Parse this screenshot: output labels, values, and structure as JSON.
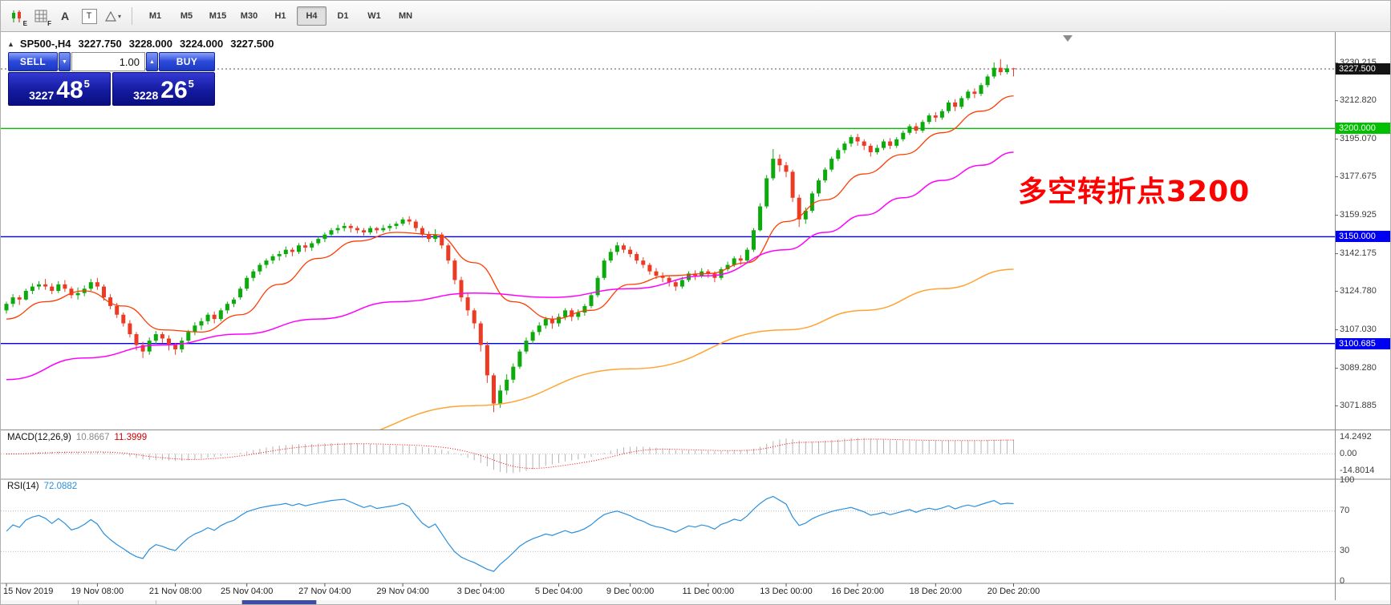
{
  "toolbar": {
    "text_tool": "A",
    "title_tool": "T",
    "icon_sub_e": "E",
    "icon_sub_f": "F",
    "dropdown_arrow": "▾",
    "timeframes": [
      "M1",
      "M5",
      "M15",
      "M30",
      "H1",
      "H4",
      "D1",
      "W1",
      "MN"
    ],
    "active_timeframe": "H4"
  },
  "chart_header": {
    "symbol_period": "SP500-,H4",
    "open": "3227.750",
    "high": "3228.000",
    "low": "3224.000",
    "close": "3227.500"
  },
  "trade_panel": {
    "toggle_icon": "▲",
    "sell_label": "SELL",
    "buy_label": "BUY",
    "volume": "1.00",
    "stepper_down": "▼",
    "stepper_up": "▲",
    "bid_big": "3227",
    "bid_pips": "48",
    "bid_sup": "5",
    "ask_big": "3228",
    "ask_pips": "26",
    "ask_sup": "5"
  },
  "annotation": {
    "text": "多空转折点3200",
    "color": "#ff0000"
  },
  "price_axis": {
    "ticks": [
      {
        "text": "3230.215",
        "value": 3230.215
      },
      {
        "text": "3212.820",
        "value": 3212.82
      },
      {
        "text": "3195.070",
        "value": 3195.07
      },
      {
        "text": "3177.675",
        "value": 3177.675
      },
      {
        "text": "3159.925",
        "value": 3159.925
      },
      {
        "text": "3142.175",
        "value": 3142.175
      },
      {
        "text": "3124.780",
        "value": 3124.78
      },
      {
        "text": "3107.030",
        "value": 3107.03
      },
      {
        "text": "3089.280",
        "value": 3089.28
      },
      {
        "text": "3071.885",
        "value": 3071.885
      }
    ],
    "special": [
      {
        "text": "3227.500",
        "value": 3227.5,
        "bg": "#141414",
        "type": "current-price"
      },
      {
        "text": "3200.000",
        "value": 3200.0,
        "bg": "#00c000",
        "type": "level"
      },
      {
        "text": "3150.000",
        "value": 3150.0,
        "bg": "#0000f0",
        "type": "level"
      },
      {
        "text": "3100.685",
        "value": 3100.685,
        "bg": "#0000f0",
        "type": "level"
      }
    ]
  },
  "macd_panel": {
    "name": "MACD(12,26,9)",
    "value_main": "10.8667",
    "value_signal": "11.3999",
    "params": {
      "fast": 12,
      "slow": 26,
      "signal": 9
    },
    "axis": [
      {
        "text": "14.2492",
        "value": 14.2492
      },
      {
        "text": "0.00",
        "value": 0
      },
      {
        "text": "-14.8014",
        "value": -14.8014
      }
    ]
  },
  "rsi_panel": {
    "name": "RSI(14)",
    "value": "72.0882",
    "period": 14,
    "levels": [
      70,
      30
    ],
    "color": "#2a8fdd",
    "axis": [
      {
        "text": "100",
        "value": 100
      },
      {
        "text": "70",
        "value": 70
      },
      {
        "text": "30",
        "value": 30
      },
      {
        "text": "0",
        "value": 0
      }
    ]
  },
  "time_axis": {
    "labels": [
      {
        "bar": 0,
        "text": "15 Nov 2019"
      },
      {
        "bar": 14,
        "text": "19 Nov 08:00"
      },
      {
        "bar": 26,
        "text": "21 Nov 08:00"
      },
      {
        "bar": 37,
        "text": "25 Nov 04:00"
      },
      {
        "bar": 49,
        "text": "27 Nov 04:00"
      },
      {
        "bar": 61,
        "text": "29 Nov 04:00"
      },
      {
        "bar": 73,
        "text": "3 Dec 04:00"
      },
      {
        "bar": 85,
        "text": "5 Dec 04:00"
      },
      {
        "bar": 96,
        "text": "9 Dec 00:00"
      },
      {
        "bar": 108,
        "text": "11 Dec 00:00"
      },
      {
        "bar": 120,
        "text": "13 Dec 00:00"
      },
      {
        "bar": 131,
        "text": "16 Dec 20:00"
      },
      {
        "bar": 143,
        "text": "18 Dec 20:00"
      },
      {
        "bar": 155,
        "text": "20 Dec 20:00"
      }
    ]
  },
  "chart_data": {
    "type": "candlestick",
    "symbol": "SP500-",
    "timeframe": "H4",
    "y_range": [
      3060.8,
      3243.4
    ],
    "up_color": "#0caa0c",
    "down_color": "#ec3b24",
    "hlines": [
      {
        "value": 3200.0,
        "color": "#00c000",
        "width": 1.4
      },
      {
        "value": 3150.0,
        "color": "#0000f0",
        "width": 1.4
      },
      {
        "value": 3100.685,
        "color": "#0000f0",
        "width": 1.4
      },
      {
        "value": 3227.5,
        "color": "#555555",
        "width": 1,
        "style": "dotted"
      }
    ],
    "moving_averages": [
      {
        "name": "fast-ma",
        "color": "#ff3b00",
        "width": 1.3,
        "points": [
          [
            0,
            3112
          ],
          [
            6,
            3120
          ],
          [
            12,
            3125
          ],
          [
            18,
            3118
          ],
          [
            24,
            3107
          ],
          [
            30,
            3106
          ],
          [
            36,
            3114
          ],
          [
            42,
            3128
          ],
          [
            48,
            3140
          ],
          [
            54,
            3148
          ],
          [
            60,
            3152
          ],
          [
            66,
            3151
          ],
          [
            72,
            3138
          ],
          [
            78,
            3120
          ],
          [
            84,
            3112
          ],
          [
            90,
            3116
          ],
          [
            96,
            3128
          ],
          [
            102,
            3132
          ],
          [
            108,
            3133
          ],
          [
            114,
            3138
          ],
          [
            120,
            3157
          ],
          [
            126,
            3167
          ],
          [
            132,
            3179
          ],
          [
            138,
            3188
          ],
          [
            144,
            3198
          ],
          [
            150,
            3208
          ],
          [
            155,
            3215
          ]
        ]
      },
      {
        "name": "medium-ma",
        "color": "#ff00ff",
        "width": 1.5,
        "points": [
          [
            0,
            3084
          ],
          [
            12,
            3094
          ],
          [
            24,
            3100
          ],
          [
            36,
            3105
          ],
          [
            48,
            3112
          ],
          [
            60,
            3120
          ],
          [
            72,
            3124
          ],
          [
            84,
            3122
          ],
          [
            96,
            3126
          ],
          [
            108,
            3132
          ],
          [
            120,
            3144
          ],
          [
            126,
            3152
          ],
          [
            132,
            3160
          ],
          [
            138,
            3168
          ],
          [
            144,
            3176
          ],
          [
            150,
            3183
          ],
          [
            155,
            3189
          ]
        ]
      },
      {
        "name": "slow-ma",
        "color": "#ffa333",
        "width": 1.5,
        "points": [
          [
            0,
            3020
          ],
          [
            24,
            3038
          ],
          [
            48,
            3056
          ],
          [
            72,
            3072
          ],
          [
            96,
            3089
          ],
          [
            120,
            3107
          ],
          [
            132,
            3116
          ],
          [
            144,
            3126
          ],
          [
            155,
            3135
          ]
        ]
      }
    ],
    "bars": [
      [
        3116,
        3120,
        3114.5,
        3119
      ],
      [
        3119,
        3123.5,
        3117.5,
        3122
      ],
      [
        3122,
        3123,
        3118.5,
        3121
      ],
      [
        3121,
        3126,
        3120.5,
        3125
      ],
      [
        3125,
        3128.5,
        3123.5,
        3127
      ],
      [
        3127,
        3129.5,
        3125.5,
        3128
      ],
      [
        3128,
        3130.5,
        3125.5,
        3127
      ],
      [
        3127,
        3128.5,
        3123.5,
        3125
      ],
      [
        3125,
        3129.5,
        3124,
        3128
      ],
      [
        3128,
        3130,
        3124.5,
        3126
      ],
      [
        3126,
        3127,
        3121.5,
        3123
      ],
      [
        3123,
        3126.5,
        3121,
        3124
      ],
      [
        3124,
        3127.5,
        3122.5,
        3126
      ],
      [
        3126,
        3130.5,
        3125,
        3129
      ],
      [
        3129,
        3131,
        3125.5,
        3127
      ],
      [
        3127,
        3128,
        3120.5,
        3122
      ],
      [
        3122,
        3123.5,
        3116.5,
        3118
      ],
      [
        3118,
        3119.5,
        3112.5,
        3114
      ],
      [
        3114,
        3115,
        3108.5,
        3110
      ],
      [
        3110,
        3111.5,
        3103.5,
        3105
      ],
      [
        3105,
        3106,
        3097.5,
        3100
      ],
      [
        3100,
        3101.5,
        3094,
        3097
      ],
      [
        3097,
        3103.5,
        3095.5,
        3102
      ],
      [
        3102,
        3106.5,
        3100.5,
        3105
      ],
      [
        3105,
        3106,
        3101,
        3103
      ],
      [
        3103,
        3104.5,
        3097.5,
        3100
      ],
      [
        3100,
        3101,
        3095.5,
        3098
      ],
      [
        3098,
        3103.5,
        3096.5,
        3102
      ],
      [
        3102,
        3107,
        3101,
        3106
      ],
      [
        3106,
        3110.5,
        3104.5,
        3109
      ],
      [
        3109,
        3112.5,
        3107,
        3111
      ],
      [
        3111,
        3115,
        3109.5,
        3114
      ],
      [
        3114,
        3115.5,
        3110,
        3112
      ],
      [
        3112,
        3117,
        3111,
        3116
      ],
      [
        3116,
        3120,
        3114.5,
        3119
      ],
      [
        3119,
        3122,
        3117.5,
        3121
      ],
      [
        3122,
        3127,
        3121,
        3126
      ],
      [
        3126,
        3132,
        3125,
        3131
      ],
      [
        3131,
        3135,
        3129.5,
        3134
      ],
      [
        3134,
        3138,
        3132.5,
        3137
      ],
      [
        3137,
        3140,
        3135.5,
        3139
      ],
      [
        3139,
        3142,
        3137.5,
        3141
      ],
      [
        3141,
        3143.5,
        3139,
        3142
      ],
      [
        3142,
        3145.5,
        3140.5,
        3144
      ],
      [
        3144,
        3145,
        3141,
        3143
      ],
      [
        3143,
        3147,
        3142,
        3146
      ],
      [
        3146,
        3147.5,
        3143,
        3145
      ],
      [
        3145,
        3148,
        3143.5,
        3147
      ],
      [
        3147,
        3150,
        3146,
        3149
      ],
      [
        3149,
        3152,
        3147.5,
        3151
      ],
      [
        3151,
        3154,
        3150,
        3153
      ],
      [
        3153,
        3155.5,
        3151.5,
        3154
      ],
      [
        3154,
        3156.5,
        3152.5,
        3155
      ],
      [
        3155,
        3156,
        3152,
        3154
      ],
      [
        3154,
        3155,
        3151.5,
        3153
      ],
      [
        3153,
        3154,
        3150.5,
        3152
      ],
      [
        3152,
        3155,
        3151,
        3154
      ],
      [
        3154,
        3154.5,
        3151.5,
        3153
      ],
      [
        3153,
        3155.5,
        3152,
        3154
      ],
      [
        3154,
        3156,
        3152.5,
        3155
      ],
      [
        3155,
        3157,
        3153.5,
        3156
      ],
      [
        3156,
        3159,
        3155,
        3158
      ],
      [
        3158,
        3159.5,
        3155.5,
        3157
      ],
      [
        3157,
        3158,
        3152.5,
        3154
      ],
      [
        3154,
        3155,
        3149.5,
        3151
      ],
      [
        3151,
        3152.5,
        3147.5,
        3149
      ],
      [
        3149,
        3153.5,
        3147.5,
        3151
      ],
      [
        3151,
        3152,
        3144.5,
        3146
      ],
      [
        3146,
        3147,
        3137.5,
        3139
      ],
      [
        3139,
        3140,
        3128,
        3130
      ],
      [
        3130,
        3131.5,
        3120,
        3122
      ],
      [
        3122,
        3124,
        3113.5,
        3116
      ],
      [
        3116,
        3117,
        3107.5,
        3110
      ],
      [
        3110,
        3111,
        3097,
        3100
      ],
      [
        3100,
        3101.5,
        3082.5,
        3086
      ],
      [
        3086,
        3087,
        3069,
        3073
      ],
      [
        3073,
        3081.5,
        3071,
        3079
      ],
      [
        3079,
        3086.5,
        3077,
        3084
      ],
      [
        3084,
        3091.5,
        3082.5,
        3090
      ],
      [
        3090,
        3098,
        3089,
        3097
      ],
      [
        3097,
        3103.5,
        3096,
        3102
      ],
      [
        3102,
        3107,
        3100.5,
        3106
      ],
      [
        3106,
        3110.5,
        3104.5,
        3109
      ],
      [
        3109,
        3113,
        3107.5,
        3112
      ],
      [
        3112,
        3113.5,
        3107.5,
        3110
      ],
      [
        3110,
        3114.5,
        3108.5,
        3113
      ],
      [
        3113,
        3117,
        3111.5,
        3116
      ],
      [
        3116,
        3117,
        3111,
        3113
      ],
      [
        3113,
        3116.5,
        3111.5,
        3115
      ],
      [
        3115,
        3119,
        3113.5,
        3118
      ],
      [
        3118,
        3124,
        3117,
        3123
      ],
      [
        3123,
        3132,
        3122,
        3131
      ],
      [
        3131,
        3140,
        3130,
        3139
      ],
      [
        3139,
        3144.5,
        3138,
        3143
      ],
      [
        3143,
        3147.5,
        3141.5,
        3146
      ],
      [
        3146,
        3147,
        3142.5,
        3144
      ],
      [
        3144,
        3145.5,
        3140.5,
        3142
      ],
      [
        3142,
        3143,
        3137.5,
        3139
      ],
      [
        3139,
        3140.5,
        3135.5,
        3137
      ],
      [
        3137,
        3138,
        3132.5,
        3134
      ],
      [
        3134,
        3135.5,
        3130.5,
        3132
      ],
      [
        3132,
        3133.5,
        3129,
        3131
      ],
      [
        3131,
        3132,
        3127,
        3129
      ],
      [
        3129,
        3130,
        3125,
        3127
      ],
      [
        3127,
        3131.5,
        3126,
        3130
      ],
      [
        3130,
        3134,
        3129,
        3133
      ],
      [
        3133,
        3134.5,
        3130,
        3132
      ],
      [
        3132,
        3135.5,
        3131,
        3134
      ],
      [
        3134,
        3135,
        3131,
        3133
      ],
      [
        3133,
        3134,
        3129,
        3131
      ],
      [
        3131,
        3136,
        3130,
        3135
      ],
      [
        3135,
        3138.5,
        3134,
        3137
      ],
      [
        3137,
        3141,
        3136,
        3140
      ],
      [
        3140,
        3141.5,
        3137,
        3139
      ],
      [
        3139,
        3145,
        3138,
        3144
      ],
      [
        3144,
        3154,
        3143,
        3153
      ],
      [
        3153,
        3165.5,
        3152.5,
        3164
      ],
      [
        3164,
        3178.5,
        3163,
        3177
      ],
      [
        3177,
        3190.5,
        3176,
        3186
      ],
      [
        3186,
        3188,
        3180,
        3183
      ],
      [
        3183,
        3184.5,
        3177.5,
        3180
      ],
      [
        3180,
        3181,
        3166,
        3168
      ],
      [
        3168,
        3169.5,
        3154.5,
        3158
      ],
      [
        3158,
        3163.5,
        3156,
        3162
      ],
      [
        3162,
        3171,
        3161,
        3170
      ],
      [
        3170,
        3177,
        3168.5,
        3176
      ],
      [
        3176,
        3182,
        3175,
        3181
      ],
      [
        3181,
        3187,
        3180,
        3186
      ],
      [
        3186,
        3191,
        3185,
        3190
      ],
      [
        3190,
        3194,
        3188.5,
        3193
      ],
      [
        3193,
        3197,
        3191.5,
        3196
      ],
      [
        3196,
        3197.5,
        3192,
        3194
      ],
      [
        3194,
        3195,
        3190,
        3192
      ],
      [
        3192,
        3193,
        3187,
        3189
      ],
      [
        3189,
        3192.5,
        3188,
        3191
      ],
      [
        3191,
        3195,
        3190,
        3194
      ],
      [
        3194,
        3195.5,
        3190.5,
        3192
      ],
      [
        3192,
        3196,
        3191,
        3195
      ],
      [
        3195,
        3199,
        3194,
        3198
      ],
      [
        3198,
        3202,
        3197,
        3201
      ],
      [
        3201,
        3202.5,
        3197.5,
        3199
      ],
      [
        3199,
        3204,
        3198,
        3203
      ],
      [
        3203,
        3207,
        3202,
        3206
      ],
      [
        3206,
        3207.5,
        3203,
        3205
      ],
      [
        3205,
        3209,
        3204,
        3208
      ],
      [
        3208,
        3213,
        3207,
        3212
      ],
      [
        3212,
        3213.5,
        3208,
        3210
      ],
      [
        3210,
        3215,
        3209,
        3214
      ],
      [
        3214,
        3218,
        3213,
        3217
      ],
      [
        3217,
        3218.5,
        3214,
        3216
      ],
      [
        3216,
        3221,
        3215,
        3220
      ],
      [
        3220,
        3225,
        3219,
        3224
      ],
      [
        3224,
        3230.5,
        3223,
        3228
      ],
      [
        3228,
        3232,
        3224.5,
        3226
      ],
      [
        3226,
        3229.5,
        3225,
        3227.75
      ],
      [
        3227.75,
        3228,
        3224,
        3227.5
      ]
    ]
  }
}
